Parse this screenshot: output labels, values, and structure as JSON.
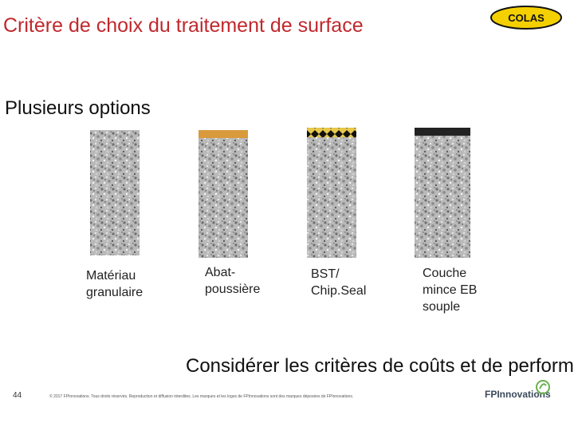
{
  "header": {
    "title": "Critère de choix du traitement de surface",
    "logo": "COLAS"
  },
  "subtitle": "Plusieurs options",
  "options": [
    {
      "label_lines": [
        "Matériau",
        "granulaire"
      ]
    },
    {
      "label_lines": [
        "Abat-",
        "poussière"
      ]
    },
    {
      "label_lines": [
        "BST/",
        "Chip.Seal"
      ]
    },
    {
      "label_lines": [
        "Couche",
        "mince EB",
        "souple"
      ]
    }
  ],
  "conclusion": "Considérer les critères de coûts et de performance !!!!!!!",
  "footer": {
    "page": "44",
    "copyright": "© 2017 FPInnovations. Tous droits réservés. Reproduction et diffusion interdites. Les marques et les logos de FPInnovations sont des marques déposées de FPInnovations.",
    "logo": "FPInnovations"
  }
}
